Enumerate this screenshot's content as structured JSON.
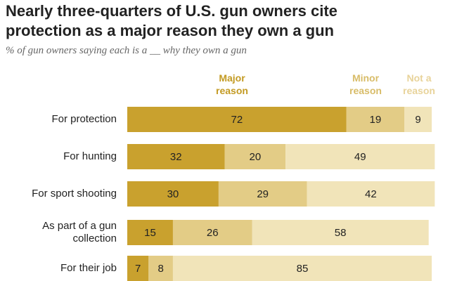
{
  "chart_data": {
    "type": "stacked-bar-horizontal",
    "title": "Nearly three-quarters of U.S. gun owners cite protection as a major reason they own a gun",
    "subtitle": "% of gun owners saying each is a __ why they own a gun",
    "categories": [
      "For protection",
      "For hunting",
      "For sport shooting",
      "As part of a gun collection",
      "For their job"
    ],
    "xlim": [
      0,
      100
    ],
    "series": [
      {
        "name": "Major reason",
        "color": "#c9a12e",
        "label_color": "#c39a22",
        "values": [
          72,
          32,
          30,
          15,
          7
        ]
      },
      {
        "name": "Minor reason",
        "color": "#e3cc86",
        "label_color": "#d8bc68",
        "values": [
          19,
          20,
          29,
          26,
          8
        ]
      },
      {
        "name": "Not a reason",
        "color": "#f1e4b9",
        "label_color": "#e8d39a",
        "values": [
          9,
          49,
          42,
          58,
          85
        ]
      }
    ]
  }
}
